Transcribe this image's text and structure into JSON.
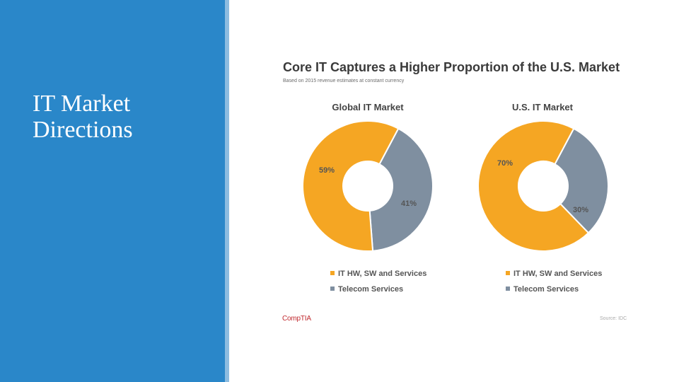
{
  "slide": {
    "title_line1": "IT Market",
    "title_line2": "Directions",
    "brand": "CompTIA",
    "source": "Source: IDC"
  },
  "colors": {
    "sidebar": "#2a87c9",
    "orange": "#f5a623",
    "gray": "#7f8fa0"
  },
  "chart_data": {
    "type": "pie",
    "title": "Core IT Captures a Higher Proportion of the U.S. Market",
    "subtitle": "Based on 2015 revenue estimates at constant currency",
    "legend_placement": "bottom",
    "charts": [
      {
        "title": "Global IT Market",
        "slices": [
          {
            "label": "IT HW, SW and Services",
            "value": 59,
            "display": "59%"
          },
          {
            "label": "Telecom Services",
            "value": 41,
            "display": "41%"
          }
        ]
      },
      {
        "title": "U.S. IT Market",
        "slices": [
          {
            "label": "IT HW, SW and Services",
            "value": 70,
            "display": "70%"
          },
          {
            "label": "Telecom Services",
            "value": 30,
            "display": "30%"
          }
        ]
      }
    ]
  }
}
